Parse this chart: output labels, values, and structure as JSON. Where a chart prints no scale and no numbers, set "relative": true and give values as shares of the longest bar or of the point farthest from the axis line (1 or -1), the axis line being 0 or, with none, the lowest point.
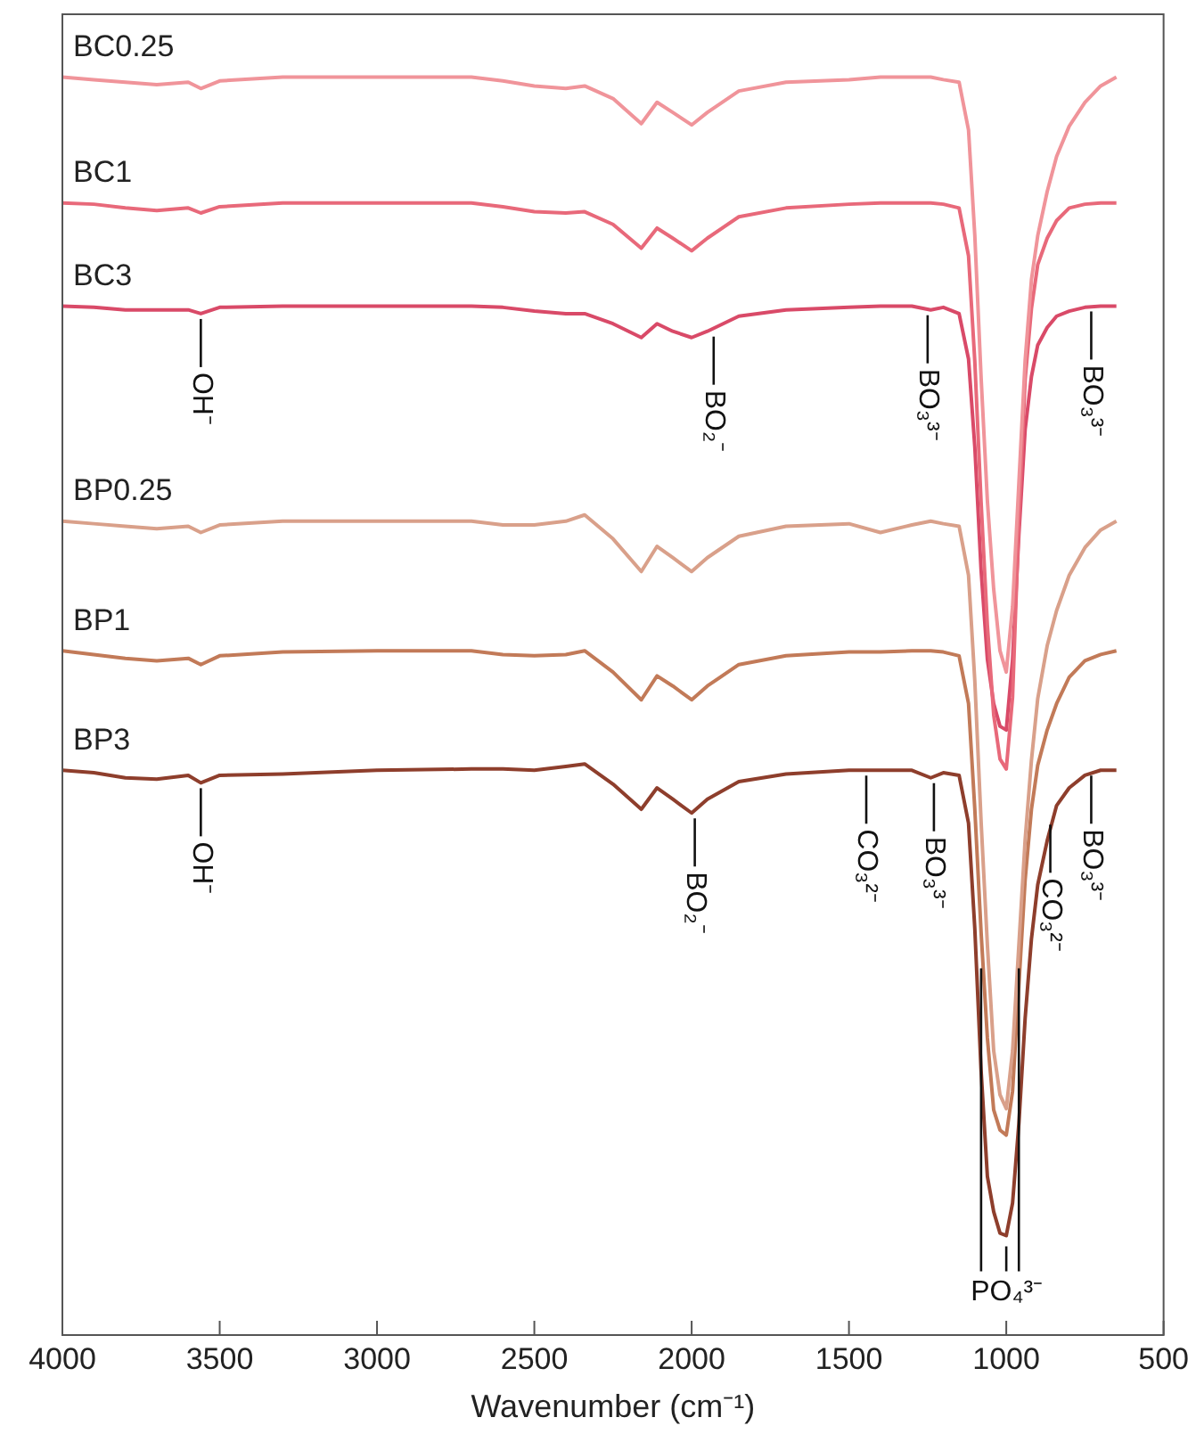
{
  "chart_data": {
    "type": "line",
    "relative": true,
    "xlabel": "Wavenumber (cm⁻¹)",
    "xlim": [
      4000,
      500
    ],
    "xticks": [
      4000,
      3500,
      3000,
      2500,
      2000,
      1500,
      1000,
      500
    ],
    "grid": false,
    "legend": false,
    "marker": "none",
    "line_style": "solid",
    "x": [
      4000,
      3900,
      3800,
      3700,
      3600,
      3560,
      3500,
      3300,
      3000,
      2700,
      2600,
      2500,
      2400,
      2340,
      2250,
      2160,
      2110,
      2060,
      2000,
      1950,
      1850,
      1700,
      1500,
      1400,
      1300,
      1240,
      1200,
      1150,
      1120,
      1100,
      1080,
      1060,
      1040,
      1020,
      1000,
      980,
      960,
      940,
      920,
      900,
      870,
      840,
      800,
      750,
      700,
      650
    ],
    "series": [
      {
        "name": "BC0.25",
        "color": "#f0949a",
        "values": [
          1.0,
          0.998,
          0.996,
          0.994,
          0.996,
          0.991,
          0.997,
          1.0,
          1.0,
          1.0,
          0.997,
          0.993,
          0.991,
          0.993,
          0.983,
          0.963,
          0.98,
          0.972,
          0.962,
          0.972,
          0.989,
          0.996,
          0.998,
          1.0,
          1.0,
          1.0,
          0.998,
          0.996,
          0.958,
          0.874,
          0.761,
          0.663,
          0.593,
          0.544,
          0.527,
          0.579,
          0.677,
          0.775,
          0.839,
          0.874,
          0.909,
          0.937,
          0.961,
          0.98,
          0.993,
          1.0
        ]
      },
      {
        "name": "BC1",
        "color": "#e8697a",
        "values": [
          0.9,
          0.899,
          0.896,
          0.894,
          0.896,
          0.892,
          0.897,
          0.9,
          0.9,
          0.9,
          0.897,
          0.893,
          0.892,
          0.893,
          0.883,
          0.864,
          0.88,
          0.872,
          0.862,
          0.872,
          0.889,
          0.896,
          0.899,
          0.9,
          0.9,
          0.9,
          0.899,
          0.896,
          0.858,
          0.774,
          0.662,
          0.564,
          0.493,
          0.458,
          0.45,
          0.507,
          0.648,
          0.76,
          0.816,
          0.851,
          0.872,
          0.886,
          0.896,
          0.899,
          0.9,
          0.9
        ]
      },
      {
        "name": "BC3",
        "color": "#d94a68",
        "values": [
          0.818,
          0.817,
          0.815,
          0.815,
          0.815,
          0.812,
          0.817,
          0.818,
          0.818,
          0.818,
          0.817,
          0.814,
          0.812,
          0.812,
          0.804,
          0.793,
          0.804,
          0.798,
          0.793,
          0.798,
          0.81,
          0.815,
          0.817,
          0.818,
          0.818,
          0.815,
          0.817,
          0.812,
          0.776,
          0.706,
          0.608,
          0.537,
          0.502,
          0.484,
          0.481,
          0.537,
          0.636,
          0.72,
          0.762,
          0.787,
          0.801,
          0.81,
          0.814,
          0.817,
          0.818,
          0.818
        ]
      },
      {
        "name": "BP0.25",
        "color": "#d9a08a",
        "values": [
          0.647,
          0.645,
          0.643,
          0.641,
          0.643,
          0.638,
          0.644,
          0.647,
          0.647,
          0.647,
          0.644,
          0.644,
          0.647,
          0.652,
          0.633,
          0.607,
          0.627,
          0.618,
          0.607,
          0.618,
          0.635,
          0.643,
          0.645,
          0.638,
          0.644,
          0.647,
          0.645,
          0.643,
          0.604,
          0.52,
          0.408,
          0.31,
          0.226,
          0.191,
          0.18,
          0.226,
          0.31,
          0.394,
          0.457,
          0.506,
          0.548,
          0.576,
          0.604,
          0.626,
          0.64,
          0.647
        ]
      },
      {
        "name": "BP1",
        "color": "#c27a58",
        "values": [
          0.544,
          0.541,
          0.538,
          0.536,
          0.538,
          0.533,
          0.54,
          0.543,
          0.544,
          0.544,
          0.541,
          0.54,
          0.541,
          0.544,
          0.527,
          0.505,
          0.524,
          0.516,
          0.505,
          0.516,
          0.533,
          0.54,
          0.543,
          0.543,
          0.544,
          0.544,
          0.543,
          0.54,
          0.502,
          0.418,
          0.32,
          0.236,
          0.179,
          0.163,
          0.159,
          0.194,
          0.278,
          0.362,
          0.418,
          0.453,
          0.481,
          0.502,
          0.523,
          0.536,
          0.541,
          0.544
        ]
      },
      {
        "name": "BP3",
        "color": "#8e3e2c",
        "values": [
          0.449,
          0.447,
          0.443,
          0.442,
          0.445,
          0.439,
          0.445,
          0.446,
          0.449,
          0.45,
          0.45,
          0.449,
          0.452,
          0.454,
          0.438,
          0.418,
          0.435,
          0.426,
          0.415,
          0.426,
          0.44,
          0.446,
          0.449,
          0.449,
          0.449,
          0.443,
          0.447,
          0.445,
          0.407,
          0.323,
          0.21,
          0.126,
          0.098,
          0.081,
          0.079,
          0.105,
          0.168,
          0.252,
          0.315,
          0.358,
          0.393,
          0.421,
          0.435,
          0.445,
          0.449,
          0.449
        ]
      }
    ],
    "annotations": [
      {
        "text": "OH⁻",
        "x": 3560,
        "y": 0.812
      },
      {
        "text": "BO₂⁻",
        "x": 1930,
        "y": 0.798
      },
      {
        "text": "BO₃³⁻",
        "x": 1250,
        "y": 0.815
      },
      {
        "text": "BO₃³⁻",
        "x": 730,
        "y": 0.818
      },
      {
        "text": "OH⁻",
        "x": 3560,
        "y": 0.439
      },
      {
        "text": "BO₂⁻",
        "x": 1990,
        "y": 0.415
      },
      {
        "text": "CO₃²⁻",
        "x": 1445,
        "y": 0.449
      },
      {
        "text": "BO₃³⁻",
        "x": 1230,
        "y": 0.443
      },
      {
        "text": "BO₃³⁻",
        "x": 730,
        "y": 0.449
      },
      {
        "text": "CO₃²⁻",
        "x": 860,
        "y": 0.41
      },
      {
        "text": "PO₄³⁻",
        "x": 1000,
        "y": 0.079
      }
    ]
  }
}
